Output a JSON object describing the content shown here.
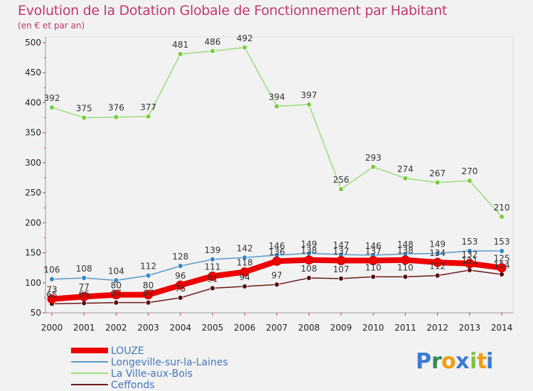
{
  "chart_data": {
    "type": "line",
    "title": "Evolution de la Dotation Globale de Fonctionnement par Habitant",
    "subtitle": "(en € et par an)",
    "x": [
      "2000",
      "2001",
      "2002",
      "2003",
      "2004",
      "2005",
      "2006",
      "2007",
      "2008",
      "2009",
      "2010",
      "2011",
      "2012",
      "2013",
      "2014"
    ],
    "ylim": [
      50,
      500
    ],
    "yticks": [
      50,
      100,
      150,
      200,
      250,
      300,
      350,
      400,
      450,
      500
    ],
    "grid": false,
    "legend_position": "bottom-left",
    "series": [
      {
        "name": "Ceffonds",
        "color": "#6b1a1a",
        "marker": "#5a1010",
        "values": [
          65,
          66,
          67,
          67,
          75,
          91,
          94,
          97,
          108,
          107,
          110,
          110,
          112,
          121,
          114
        ]
      },
      {
        "name": "La Ville-aux-Bois",
        "color": "#99dd77",
        "marker": "#77cc44",
        "values": [
          392,
          375,
          376,
          377,
          481,
          486,
          492,
          394,
          397,
          256,
          293,
          274,
          267,
          270,
          210
        ]
      },
      {
        "name": "Longeville-sur-la-Laines",
        "color": "#5599cc",
        "marker": "#3388cc",
        "values": [
          106,
          108,
          104,
          112,
          128,
          139,
          142,
          146,
          149,
          147,
          146,
          148,
          149,
          153,
          153
        ]
      },
      {
        "name": "LOUZE",
        "color": "#ee0000",
        "marker": "#ee0000",
        "values": [
          73,
          77,
          80,
          80,
          96,
          111,
          118,
          136,
          138,
          137,
          137,
          138,
          134,
          132,
          125
        ]
      }
    ],
    "legend_order": [
      "LOUZE",
      "Longeville-sur-la-Laines",
      "La Ville-aux-Bois",
      "Ceffonds"
    ]
  },
  "branding": {
    "letters": [
      "P",
      "r",
      "o",
      "x",
      "i",
      "t",
      "i"
    ],
    "colors": [
      "#3a7bd5",
      "#2e8b57",
      "#f39c12",
      "#3a7bd5",
      "#7cc242",
      "#f39c12",
      "#3a7bd5"
    ]
  }
}
